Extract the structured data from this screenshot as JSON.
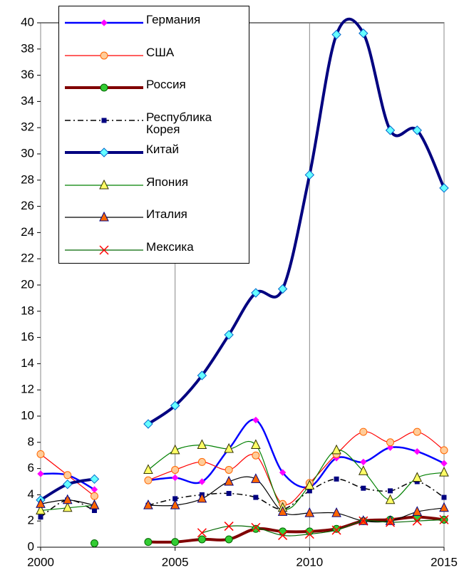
{
  "chart_data": {
    "type": "line",
    "x": [
      2000,
      2001,
      2002,
      2003,
      2004,
      2005,
      2006,
      2007,
      2008,
      2009,
      2010,
      2011,
      2012,
      2013,
      2014,
      2015
    ],
    "xlim": [
      2000,
      2015
    ],
    "xticks": [
      2000,
      2005,
      2010,
      2015
    ],
    "ylim": [
      0,
      40
    ],
    "yticks": [
      0,
      2,
      4,
      6,
      8,
      10,
      12,
      14,
      16,
      18,
      20,
      22,
      24,
      26,
      28,
      30,
      32,
      34,
      36,
      38,
      40
    ],
    "grid": "x",
    "legend": "top-left",
    "series": [
      {
        "name": "Германия",
        "color": "#0000ff",
        "marker_color": "#ff00ff",
        "marker": "diamond-small",
        "line_width": 2.5,
        "values": [
          5.6,
          5.5,
          4.4,
          null,
          5.1,
          5.3,
          5.0,
          7.5,
          9.7,
          5.7,
          4.6,
          6.8,
          6.5,
          7.6,
          7.3,
          6.4
        ]
      },
      {
        "name": "США",
        "color": "#ff0000",
        "marker_color": "#ffcc99",
        "marker_stroke": "#ff6600",
        "marker": "circle",
        "line_width": 1.2,
        "values": [
          7.1,
          5.5,
          3.9,
          null,
          5.1,
          5.9,
          6.5,
          5.9,
          7.0,
          3.3,
          4.9,
          7.1,
          8.8,
          8.0,
          8.8,
          7.4
        ]
      },
      {
        "name": "Россия",
        "color": "#800000",
        "marker_color": "#33cc33",
        "marker_stroke": "#006600",
        "marker": "circle",
        "line_width": 4,
        "values": [
          null,
          null,
          0.3,
          null,
          0.4,
          0.4,
          0.6,
          0.6,
          1.4,
          1.2,
          1.2,
          1.4,
          2.0,
          2.1,
          2.3,
          2.1
        ]
      },
      {
        "name": "Республика Корея",
        "color": "#000000",
        "marker_color": "#000080",
        "marker": "square",
        "line_width": 1.5,
        "dash": "dashdot",
        "values": [
          2.3,
          3.6,
          2.8,
          null,
          3.2,
          3.7,
          4.0,
          4.1,
          3.8,
          2.9,
          4.3,
          5.2,
          4.5,
          4.3,
          5.0,
          3.8
        ]
      },
      {
        "name": "Китай",
        "color": "#000080",
        "marker_color": "#66ffff",
        "marker_stroke": "#0066cc",
        "marker": "diamond",
        "line_width": 4,
        "values": [
          3.6,
          4.8,
          5.2,
          null,
          9.4,
          10.8,
          13.1,
          16.2,
          19.4,
          19.7,
          28.4,
          39.1,
          39.2,
          31.8,
          31.8,
          27.4
        ]
      },
      {
        "name": "Япония",
        "color": "#008000",
        "marker_color": "#ffff66",
        "marker_stroke": "#333300",
        "marker": "triangle",
        "line_width": 1.2,
        "values": [
          2.8,
          3.0,
          3.2,
          null,
          5.9,
          7.4,
          7.8,
          7.5,
          7.8,
          3.0,
          4.7,
          7.4,
          5.8,
          3.6,
          5.3,
          5.7
        ]
      },
      {
        "name": "Италия",
        "color": "#000000",
        "marker_color": "#ff6600",
        "marker_stroke": "#000080",
        "marker": "triangle",
        "line_width": 1.2,
        "values": [
          3.3,
          3.6,
          3.2,
          null,
          3.2,
          3.2,
          3.7,
          5.0,
          5.2,
          2.7,
          2.6,
          2.6,
          2.0,
          2.0,
          2.7,
          3.0
        ]
      },
      {
        "name": "Мексика",
        "color": "#006600",
        "marker_color": "#ff0000",
        "marker": "x",
        "line_width": 1.2,
        "values": [
          null,
          null,
          null,
          null,
          null,
          null,
          1.1,
          1.6,
          1.5,
          0.9,
          1.0,
          1.3,
          2.0,
          1.9,
          2.0,
          2.1
        ]
      }
    ]
  }
}
